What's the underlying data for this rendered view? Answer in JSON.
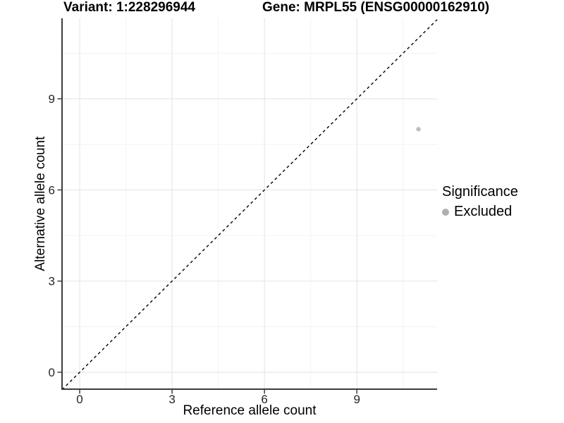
{
  "chart_data": {
    "type": "scatter",
    "titles": {
      "variant": "Variant: 1:228296944",
      "gene": "Gene: MRPL55 (ENSG00000162910)"
    },
    "xlabel": "Reference allele count",
    "ylabel": "Alternative allele count",
    "x_ticks": [
      0,
      3,
      6,
      9
    ],
    "y_ticks": [
      0,
      3,
      6,
      9
    ],
    "x_minor_ticks": [
      1.5,
      4.5,
      7.5,
      10.5
    ],
    "y_minor_ticks": [
      1.5,
      4.5,
      7.5,
      10.5
    ],
    "xlim": [
      -0.573,
      11.605
    ],
    "ylim": [
      -0.557,
      11.648
    ],
    "grid": "major+minor",
    "points": [
      {
        "x": 11,
        "y": 8,
        "significance": "Excluded"
      }
    ],
    "point_color": "#bebebe",
    "point_radius": 3.2,
    "identity_line": {
      "equation": "y = x",
      "style": "dashed",
      "color": "#000000"
    },
    "legend": {
      "title": "Significance",
      "position": "right",
      "entries": [
        {
          "label": "Excluded",
          "color": "#b0b0b0"
        }
      ]
    },
    "colors": {
      "grid_major": "#e7e7e7",
      "grid_minor": "#f3f3f3",
      "axis": "#3c3c3c",
      "tick_text": "#262626"
    }
  }
}
